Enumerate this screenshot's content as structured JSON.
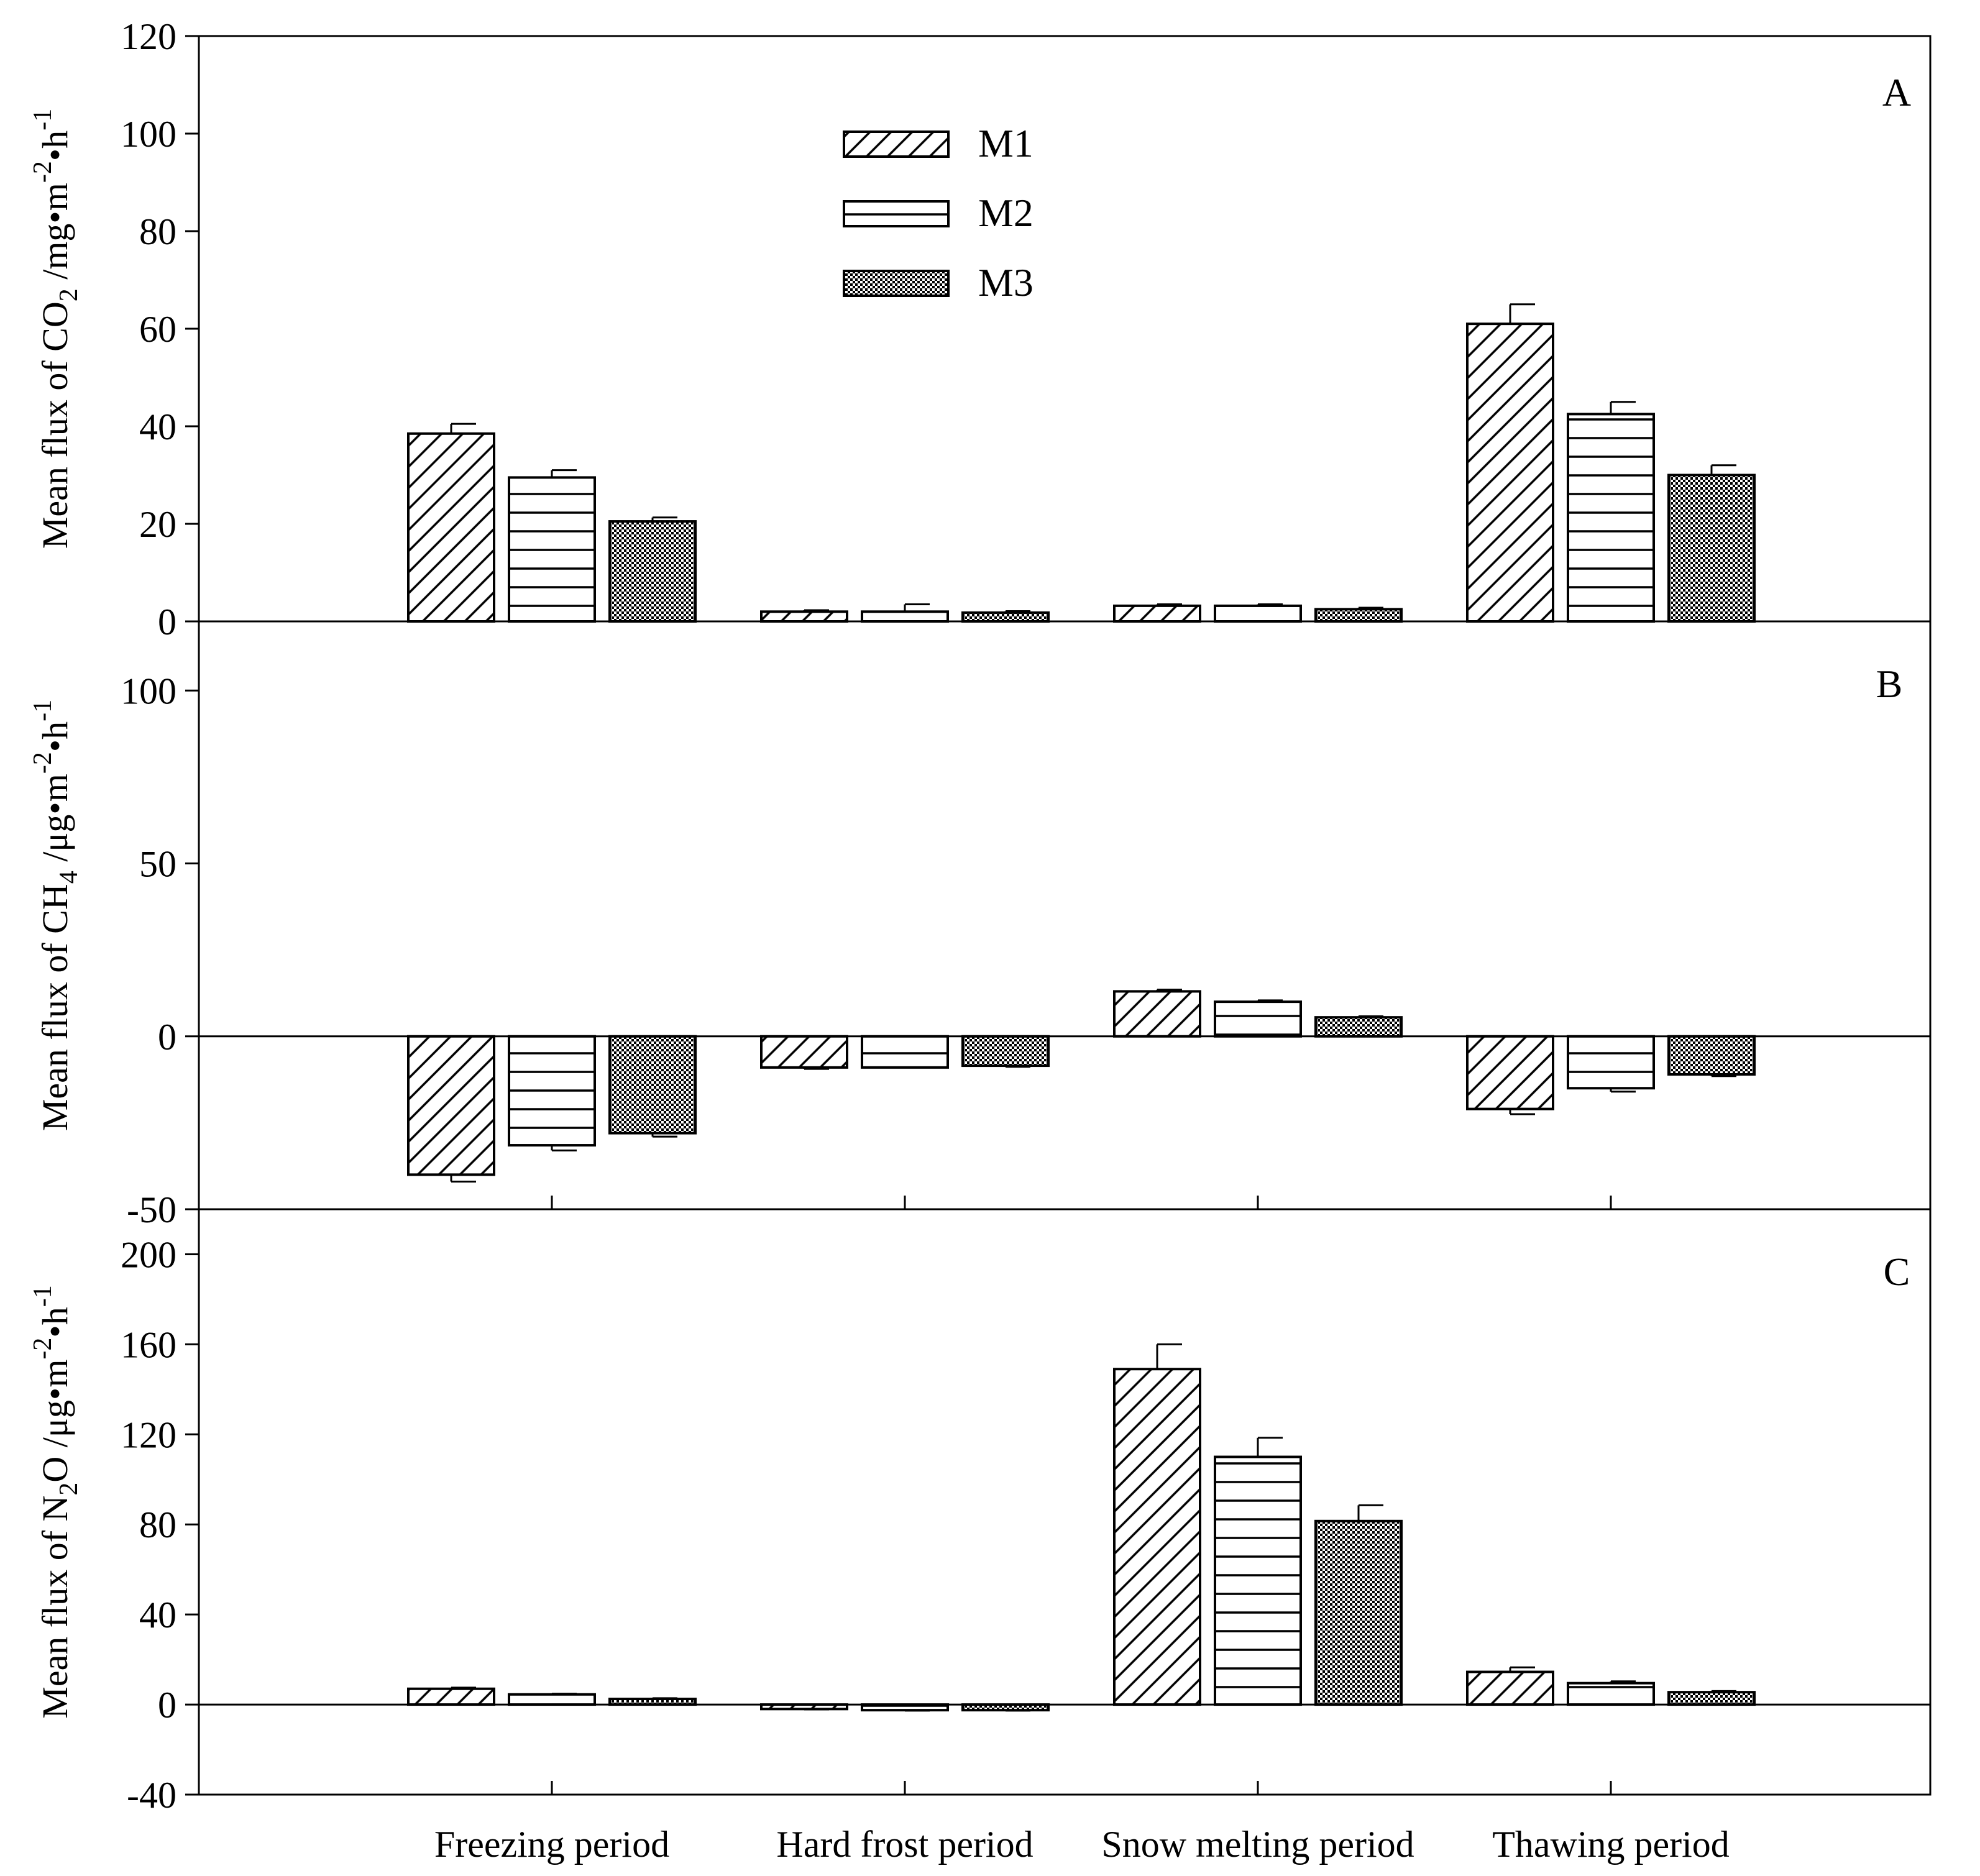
{
  "chart_data": [
    {
      "type": "bar",
      "panel": "A",
      "ylabel": {
        "prefix": "Mean flux of CO",
        "sub": "2",
        "suffix": " /mg•m",
        "sup1": "-2",
        "mid": "•h",
        "sup2": "-1"
      },
      "ylim": [
        0,
        120
      ],
      "yticks": [
        0,
        20,
        40,
        60,
        80,
        100,
        120
      ],
      "categories": [
        "Freezing period",
        "Hard frost period",
        "Snow melting period",
        "Thawing period"
      ],
      "series": [
        {
          "name": "M1",
          "values": [
            38.5,
            2.0,
            3.2,
            61.0
          ],
          "errors": [
            2.0,
            0.3,
            0.3,
            4.0
          ]
        },
        {
          "name": "M2",
          "values": [
            29.5,
            2.0,
            3.2,
            42.5
          ],
          "errors": [
            1.5,
            1.5,
            0.3,
            2.5
          ]
        },
        {
          "name": "M3",
          "values": [
            20.5,
            1.8,
            2.5,
            30.0
          ],
          "errors": [
            0.8,
            0.3,
            0.3,
            2.0
          ]
        }
      ]
    },
    {
      "type": "bar",
      "panel": "B",
      "ylabel": {
        "prefix": "Mean flux of CH",
        "sub": "4",
        "suffix": " /μg•m",
        "sup1": "-2",
        "mid": "•h",
        "sup2": "-1"
      },
      "ylim": [
        -50,
        120
      ],
      "yticks": [
        -50,
        0,
        50,
        100
      ],
      "categories": [
        "Freezing period",
        "Hard frost period",
        "Snow melting period",
        "Thawing period"
      ],
      "series": [
        {
          "name": "M1",
          "values": [
            -40.0,
            -9.0,
            13.0,
            -21.0
          ],
          "errors": [
            2.0,
            0.4,
            0.5,
            1.5
          ]
        },
        {
          "name": "M2",
          "values": [
            -31.5,
            -9.0,
            10.0,
            -15.0
          ],
          "errors": [
            1.5,
            0.0,
            0.4,
            1.0
          ]
        },
        {
          "name": "M3",
          "values": [
            -28.0,
            -8.5,
            5.5,
            -11.0
          ],
          "errors": [
            1.0,
            0.3,
            0.3,
            0.5
          ]
        }
      ]
    },
    {
      "type": "bar",
      "panel": "C",
      "ylabel": {
        "prefix": "Mean flux of N",
        "sub": "2",
        "suffix": "O /μg•m",
        "sup1": "-2",
        "mid": "•h",
        "sup2": "-1"
      },
      "ylim": [
        -40,
        220
      ],
      "yticks": [
        -40,
        0,
        40,
        80,
        120,
        160,
        200
      ],
      "categories": [
        "Freezing period",
        "Hard frost period",
        "Snow melting period",
        "Thawing period"
      ],
      "series": [
        {
          "name": "M1",
          "values": [
            7.0,
            -2.0,
            149.0,
            14.5
          ],
          "errors": [
            0.5,
            0.2,
            11.0,
            2.0
          ]
        },
        {
          "name": "M2",
          "values": [
            4.5,
            -2.5,
            110.0,
            9.5
          ],
          "errors": [
            0.3,
            0.2,
            8.5,
            0.8
          ]
        },
        {
          "name": "M3",
          "values": [
            2.5,
            -2.5,
            81.5,
            5.5
          ],
          "errors": [
            0.3,
            0.2,
            7.0,
            0.5
          ]
        }
      ]
    }
  ],
  "legend": [
    "M1",
    "M2",
    "M3"
  ],
  "panel_letters": [
    "A",
    "B",
    "C"
  ],
  "colors": {
    "ink": "#000000",
    "background": "#ffffff"
  }
}
